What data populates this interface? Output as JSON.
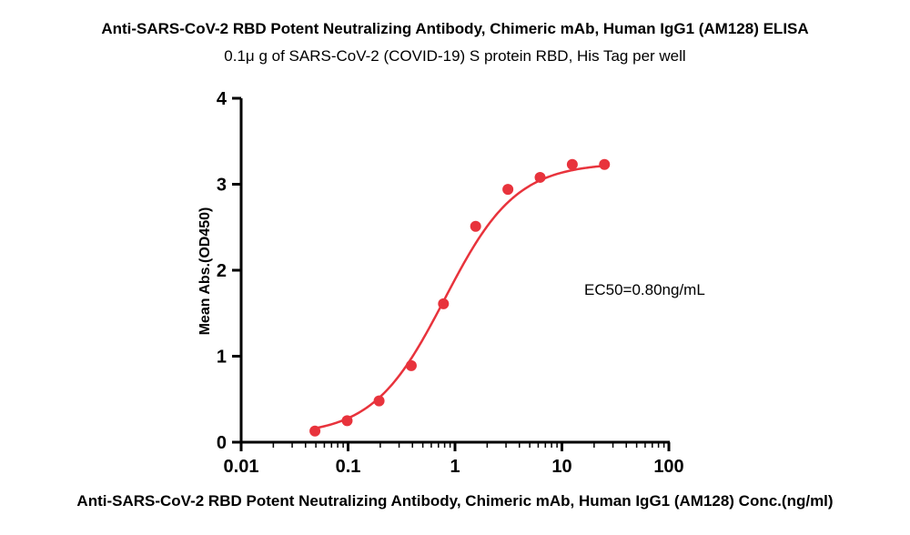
{
  "chart_data": {
    "type": "scatter",
    "title": "Anti-SARS-CoV-2 RBD Potent Neutralizing Antibody, Chimeric mAb, Human IgG1 (AM128) ELISA",
    "subtitle": "0.1μ g of SARS-CoV-2 (COVID-19) S protein RBD, His Tag per well",
    "xlabel": "Anti-SARS-CoV-2 RBD Potent Neutralizing Antibody, Chimeric mAb, Human IgG1 (AM128) Conc.(ng/ml)",
    "ylabel": "Mean Abs.(OD450)",
    "x_scale": "log",
    "xlim": [
      0.01,
      100
    ],
    "ylim": [
      0,
      4
    ],
    "x_ticks": [
      "0.01",
      "0.1",
      "1",
      "10",
      "100"
    ],
    "x_tick_values": [
      0.01,
      0.1,
      1,
      10,
      100
    ],
    "y_ticks": [
      "0",
      "1",
      "2",
      "3",
      "4"
    ],
    "y_tick_values": [
      0,
      1,
      2,
      3,
      4
    ],
    "grid": false,
    "series": [
      {
        "color": "#e8333c",
        "x": [
          0.049,
          0.098,
          0.195,
          0.39,
          0.78,
          1.56,
          3.125,
          6.25,
          12.5,
          25
        ],
        "y": [
          0.13,
          0.25,
          0.48,
          0.89,
          1.61,
          2.51,
          2.94,
          3.08,
          3.23,
          3.23
        ]
      }
    ],
    "fit": {
      "model": "4PL",
      "bottom": 0.08,
      "top": 3.25,
      "ec50": 0.8,
      "hill": 1.3
    },
    "annotation": "EC50=0.80ng/mL"
  }
}
